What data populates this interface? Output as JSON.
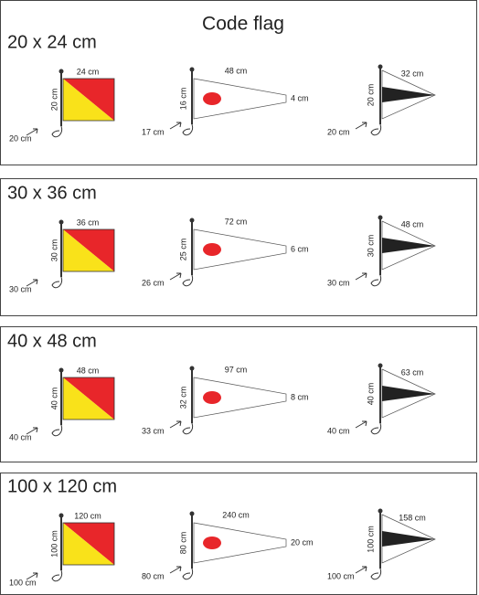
{
  "title": "Code flag",
  "sections": [
    {
      "size": "20 x 24 cm",
      "square": {
        "width": "24 cm",
        "height": "20 cm",
        "rope": "20 cm"
      },
      "pennant": {
        "length": "48 cm",
        "height": "16 cm",
        "tip": "4 cm",
        "rope": "17 cm"
      },
      "triangle": {
        "length": "32 cm",
        "height": "20 cm",
        "rope": "20 cm"
      }
    },
    {
      "size": "30 x 36 cm",
      "square": {
        "width": "36 cm",
        "height": "30 cm",
        "rope": "30 cm"
      },
      "pennant": {
        "length": "72 cm",
        "height": "25 cm",
        "tip": "6 cm",
        "rope": "26 cm"
      },
      "triangle": {
        "length": "48 cm",
        "height": "30 cm",
        "rope": "30 cm"
      }
    },
    {
      "size": "40 x 48 cm",
      "square": {
        "width": "48 cm",
        "height": "40 cm",
        "rope": "40 cm"
      },
      "pennant": {
        "length": "97 cm",
        "height": "32 cm",
        "tip": "8 cm",
        "rope": "33 cm"
      },
      "triangle": {
        "length": "63 cm",
        "height": "40 cm",
        "rope": "40 cm"
      }
    },
    {
      "size": "100 x 120 cm",
      "square": {
        "width": "120 cm",
        "height": "100 cm",
        "rope": "100 cm"
      },
      "pennant": {
        "length": "240 cm",
        "height": "80 cm",
        "tip": "20 cm",
        "rope": "80 cm"
      },
      "triangle": {
        "length": "158 cm",
        "height": "100 cm",
        "rope": "100 cm"
      }
    }
  ]
}
